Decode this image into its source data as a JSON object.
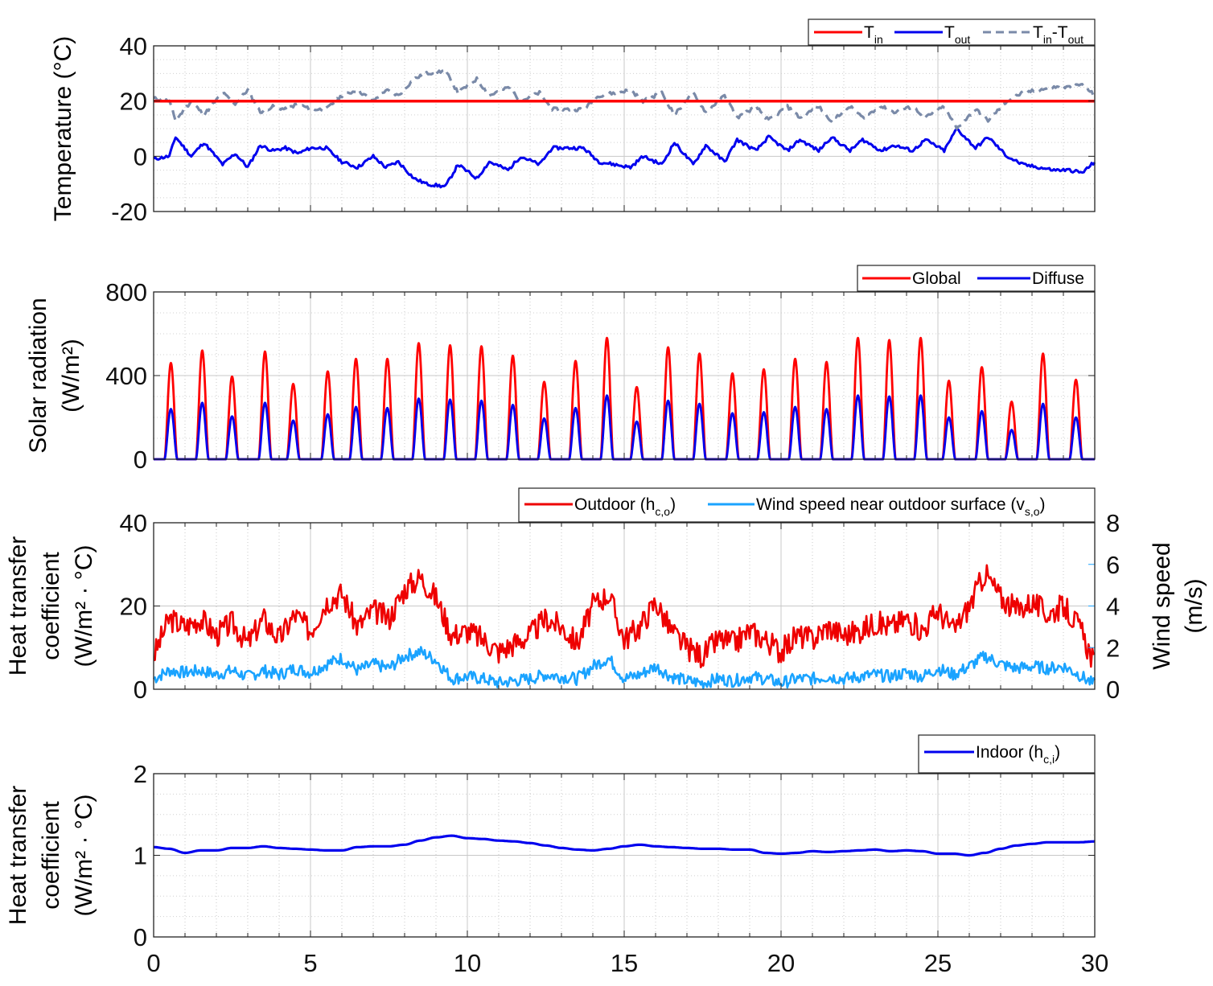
{
  "chart_data": [
    {
      "type": "line",
      "panel": "temperature",
      "ylabel": "Temperature (°C)",
      "ylim": [
        -20,
        40
      ],
      "yticks": [
        "-20",
        "0",
        "20",
        "40"
      ],
      "xlim": [
        0,
        30
      ],
      "legend": "top-right",
      "series": [
        {
          "name": "T_in",
          "label_main": "T",
          "label_sub": "in",
          "color": "#ff0000",
          "style": "solid",
          "x": [
            0,
            30
          ],
          "values": [
            20,
            20
          ]
        },
        {
          "name": "T_out",
          "label_main": "T",
          "label_sub": "out",
          "color": "#0000ee",
          "style": "solid",
          "x": [
            0,
            0.5,
            0.7,
            1.2,
            1.6,
            2.2,
            2.6,
            3.0,
            3.4,
            3.8,
            4.2,
            4.6,
            5.0,
            5.5,
            6.0,
            6.5,
            7.0,
            7.4,
            7.8,
            8.3,
            8.7,
            9.3,
            9.7,
            10.3,
            10.7,
            11.3,
            11.7,
            12.3,
            12.7,
            13.3,
            13.7,
            14.2,
            14.7,
            15.2,
            15.6,
            16.2,
            16.6,
            17.2,
            17.6,
            18.2,
            18.6,
            19.2,
            19.6,
            20.2,
            20.6,
            21.2,
            21.6,
            22.2,
            22.6,
            23.2,
            23.6,
            24.2,
            24.6,
            25.2,
            25.6,
            26.2,
            26.6,
            27.2,
            27.7,
            28.2,
            28.7,
            29.2,
            29.6,
            30
          ],
          "values": [
            -1,
            0,
            7,
            0,
            5,
            -3,
            1,
            -4,
            4,
            2,
            3,
            1,
            3,
            3,
            -2,
            -4,
            0,
            -4,
            -2,
            -8,
            -10,
            -11,
            -3,
            -8,
            -2,
            -5,
            0,
            -3,
            3,
            3,
            3,
            -2,
            -3,
            -4,
            0,
            -3,
            5,
            -3,
            4,
            -2,
            6,
            2,
            7,
            2,
            6,
            2,
            7,
            2,
            6,
            2,
            4,
            2,
            6,
            2,
            10,
            3,
            7,
            0,
            -3,
            -4,
            -5,
            -5,
            -6,
            -2
          ]
        },
        {
          "name": "T_in-T_out",
          "label_main": "T",
          "label_sub": "in",
          "label_mid": "-T",
          "label_sub2": "out",
          "color": "#7a8aa8",
          "style": "dashed",
          "x": [
            0,
            0.5,
            0.7,
            1.2,
            1.6,
            2.2,
            2.6,
            3.0,
            3.4,
            3.8,
            4.2,
            4.6,
            5.0,
            5.5,
            6.0,
            6.5,
            7.0,
            7.4,
            7.8,
            8.3,
            8.7,
            9.3,
            9.7,
            10.3,
            10.7,
            11.3,
            11.7,
            12.3,
            12.7,
            13.3,
            13.7,
            14.2,
            14.7,
            15.2,
            15.6,
            16.2,
            16.6,
            17.2,
            17.6,
            18.2,
            18.6,
            19.2,
            19.6,
            20.2,
            20.6,
            21.2,
            21.6,
            22.2,
            22.6,
            23.2,
            23.6,
            24.2,
            24.6,
            25.2,
            25.6,
            26.2,
            26.6,
            27.2,
            27.7,
            28.2,
            28.7,
            29.2,
            29.6,
            30
          ],
          "values": [
            21,
            20,
            13,
            20,
            15,
            23,
            19,
            24,
            16,
            18,
            17,
            19,
            17,
            17,
            22,
            24,
            20,
            24,
            22,
            28,
            30,
            31,
            23,
            28,
            22,
            25,
            20,
            23,
            17,
            17,
            17,
            22,
            23,
            24,
            20,
            23,
            15,
            23,
            16,
            22,
            14,
            18,
            13,
            18,
            14,
            18,
            13,
            18,
            14,
            18,
            16,
            18,
            14,
            18,
            10,
            17,
            13,
            20,
            23,
            24,
            25,
            25,
            26,
            22
          ]
        }
      ]
    },
    {
      "type": "line",
      "panel": "solar",
      "ylabel_line1": "Solar radiation",
      "ylabel_line2": "(W/m²)",
      "ylim": [
        0,
        800
      ],
      "yticks": [
        "0",
        "400",
        "800"
      ],
      "xlim": [
        0,
        30
      ],
      "legend": "top-right",
      "day_peak_x": [
        0.55,
        1.55,
        2.5,
        3.55,
        4.45,
        5.55,
        6.45,
        7.45,
        8.45,
        9.45,
        10.45,
        11.45,
        12.45,
        13.45,
        14.45,
        15.4,
        16.4,
        17.4,
        18.45,
        19.45,
        20.45,
        21.45,
        22.45,
        23.45,
        24.45,
        25.35,
        26.4,
        27.35,
        28.35,
        29.4
      ],
      "series": [
        {
          "name": "Global",
          "label_main": "Global",
          "color": "#ff0000",
          "values": [
            460,
            520,
            395,
            515,
            360,
            420,
            480,
            480,
            555,
            545,
            540,
            495,
            370,
            470,
            580,
            345,
            535,
            505,
            410,
            430,
            480,
            465,
            580,
            570,
            580,
            375,
            440,
            275,
            505,
            380
          ]
        },
        {
          "name": "Diffuse",
          "label_main": "Diffuse",
          "color": "#0000ee",
          "values": [
            240,
            270,
            205,
            270,
            185,
            215,
            250,
            245,
            290,
            285,
            280,
            260,
            195,
            245,
            305,
            180,
            280,
            265,
            220,
            225,
            250,
            240,
            305,
            300,
            305,
            200,
            230,
            140,
            265,
            200
          ]
        }
      ]
    },
    {
      "type": "line",
      "panel": "outdoor",
      "ylabel_line1": "Heat transfer",
      "ylabel_line2": "coefficient",
      "ylabel_line3": "(W/m² · °C)",
      "ylim": [
        0,
        40
      ],
      "yticks": [
        "0",
        "20",
        "40"
      ],
      "y2label_line1": "Wind speed",
      "y2label_line2": "(m/s)",
      "y2lim": [
        0,
        8
      ],
      "y2ticks": [
        "0",
        "2",
        "4",
        "6",
        "8"
      ],
      "xlim": [
        0,
        30
      ],
      "legend": "top-right",
      "series": [
        {
          "name": "Outdoor (h_c,o)",
          "label_main": "Outdoor (h",
          "label_sub": "c,o",
          "label_tail": ")",
          "color": "#ee0000",
          "axis": "left",
          "x": [
            0,
            0.5,
            1,
            1.5,
            2,
            2.5,
            3,
            3.5,
            4,
            4.5,
            5,
            5.5,
            6,
            6.5,
            7,
            7.5,
            8,
            8.5,
            9,
            9.5,
            10,
            10.5,
            11,
            11.5,
            12,
            12.5,
            13,
            13.5,
            14,
            14.5,
            15,
            15.5,
            16,
            16.5,
            17,
            17.5,
            18,
            18.5,
            19,
            19.5,
            20,
            20.5,
            21,
            21.5,
            22,
            22.5,
            23,
            23.5,
            24,
            24.5,
            25,
            25.5,
            26,
            26.5,
            27,
            27.5,
            28,
            28.5,
            29,
            29.5,
            30
          ],
          "values": [
            8,
            17,
            15,
            17,
            13,
            16,
            11,
            17,
            12,
            18,
            14,
            21,
            23,
            15,
            19,
            17,
            24,
            27,
            22,
            13,
            14,
            12,
            9,
            11,
            13,
            17,
            15,
            11,
            20,
            23,
            12,
            15,
            21,
            14,
            10,
            8,
            12,
            11,
            14,
            12,
            9,
            13,
            12,
            15,
            13,
            14,
            16,
            15,
            17,
            14,
            19,
            14,
            20,
            28,
            22,
            19,
            21,
            18,
            20,
            15,
            6
          ]
        },
        {
          "name": "Wind speed near outdoor surface (v_s,o)",
          "label_main": "Wind speed near outdoor surface (v",
          "label_sub": "s,o",
          "label_tail": ")",
          "color": "#1aa3ff",
          "axis": "right",
          "x": [
            0,
            0.5,
            1,
            1.5,
            2,
            2.5,
            3,
            3.5,
            4,
            4.5,
            5,
            5.5,
            6,
            6.5,
            7,
            7.5,
            8,
            8.5,
            9,
            9.5,
            10,
            10.5,
            11,
            11.5,
            12,
            12.5,
            13,
            13.5,
            14,
            14.5,
            15,
            15.5,
            16,
            16.5,
            17,
            17.5,
            18,
            18.5,
            19,
            19.5,
            20,
            20.5,
            21,
            21.5,
            22,
            22.5,
            23,
            23.5,
            24,
            24.5,
            25,
            25.5,
            26,
            26.5,
            27,
            27.5,
            28,
            28.5,
            29,
            29.5,
            30
          ],
          "values": [
            0.5,
            0.9,
            0.8,
            0.9,
            0.7,
            0.9,
            0.6,
            0.9,
            0.7,
            1.0,
            0.8,
            1.2,
            1.5,
            0.9,
            1.2,
            1.0,
            1.6,
            1.8,
            1.4,
            0.5,
            0.6,
            0.5,
            0.3,
            0.4,
            0.5,
            0.7,
            0.6,
            0.5,
            1.1,
            1.5,
            0.5,
            0.7,
            1.1,
            0.6,
            0.4,
            0.3,
            0.5,
            0.4,
            0.6,
            0.5,
            0.3,
            0.5,
            0.5,
            0.6,
            0.5,
            0.6,
            0.7,
            0.6,
            0.8,
            0.6,
            1.0,
            0.7,
            1.1,
            1.6,
            1.2,
            1.0,
            1.1,
            1.0,
            1.1,
            0.7,
            0.2
          ]
        }
      ]
    },
    {
      "type": "line",
      "panel": "indoor",
      "ylabel_line1": "Heat transfer",
      "ylabel_line2": "coefficient",
      "ylabel_line3": "(W/m² · °C)",
      "ylim": [
        0,
        2
      ],
      "yticks": [
        "0",
        "1",
        "2"
      ],
      "xlim": [
        0,
        30
      ],
      "xticks": [
        "0",
        "5",
        "10",
        "15",
        "20",
        "25",
        "30"
      ],
      "legend": "top-right",
      "series": [
        {
          "name": "Indoor (h_c,i)",
          "label_main": "Indoor (h",
          "label_sub": "c,i",
          "label_tail": ")",
          "color": "#0000ee",
          "x": [
            0,
            0.5,
            1,
            1.5,
            2,
            2.5,
            3,
            3.5,
            4,
            4.5,
            5,
            5.5,
            6,
            6.5,
            7,
            7.5,
            8,
            8.5,
            9,
            9.5,
            10,
            10.5,
            11,
            11.5,
            12,
            12.5,
            13,
            13.5,
            14,
            14.5,
            15,
            15.5,
            16,
            16.5,
            17,
            17.5,
            18,
            18.5,
            19,
            19.5,
            20,
            20.5,
            21,
            21.5,
            22,
            22.5,
            23,
            23.5,
            24,
            24.5,
            25,
            25.5,
            26,
            26.5,
            27,
            27.5,
            28,
            28.5,
            29,
            29.5,
            30
          ],
          "values": [
            1.1,
            1.08,
            1.03,
            1.06,
            1.06,
            1.09,
            1.09,
            1.11,
            1.09,
            1.08,
            1.07,
            1.06,
            1.06,
            1.1,
            1.11,
            1.11,
            1.13,
            1.18,
            1.22,
            1.24,
            1.21,
            1.2,
            1.18,
            1.17,
            1.15,
            1.12,
            1.09,
            1.07,
            1.06,
            1.08,
            1.11,
            1.13,
            1.11,
            1.1,
            1.09,
            1.08,
            1.08,
            1.07,
            1.07,
            1.03,
            1.02,
            1.03,
            1.05,
            1.04,
            1.05,
            1.06,
            1.07,
            1.05,
            1.06,
            1.05,
            1.02,
            1.02,
            1.0,
            1.03,
            1.08,
            1.12,
            1.14,
            1.16,
            1.16,
            1.16,
            1.17
          ]
        }
      ]
    }
  ]
}
